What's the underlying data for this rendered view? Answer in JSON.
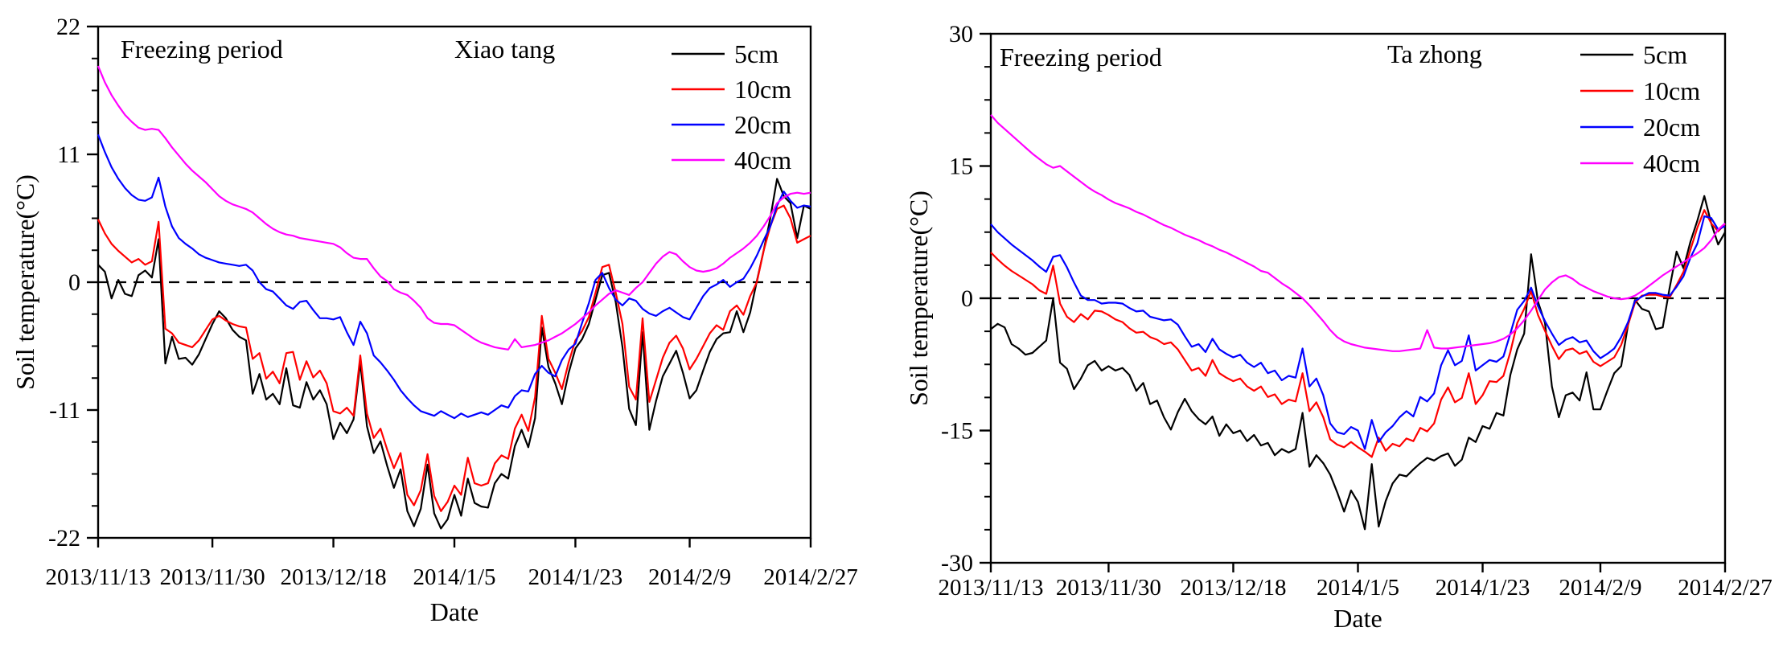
{
  "figure": {
    "background": "#ffffff",
    "text_color": "#000000",
    "annotation": "Freezing period",
    "xlabel": "Date",
    "ylabel": "Soil temperature(°C)"
  },
  "chart_data": [
    {
      "type": "line",
      "title": "Xiao tang",
      "annotation": "Freezing period",
      "xlabel": "Date",
      "ylabel": "Soil temperature(°C)",
      "ylim": [
        -22,
        22
      ],
      "yticks": [
        22,
        11,
        0,
        -11,
        -22
      ],
      "y_minor_per_interval": 3,
      "x_tick_labels": [
        "2013/11/13",
        "2013/11/30",
        "2013/12/18",
        "2014/1/5",
        "2014/1/23",
        "2014/2/9",
        "2014/2/27"
      ],
      "x_tick_days": [
        0,
        17,
        35,
        53,
        71,
        88,
        106
      ],
      "x_days_total": 106,
      "zero_line_dashed": true,
      "legend_position": "top-right",
      "grid": false,
      "series": [
        {
          "name": "5cm",
          "color": "#000000",
          "values": [
            1.5,
            0.9,
            -1.4,
            0.2,
            -1.0,
            -1.2,
            0.6,
            1.0,
            0.4,
            3.7,
            -7.0,
            -4.7,
            -6.6,
            -6.5,
            -7.1,
            -6.2,
            -4.9,
            -3.6,
            -2.5,
            -3.1,
            -4.1,
            -4.7,
            -5.0,
            -9.6,
            -7.9,
            -10.1,
            -9.6,
            -10.5,
            -7.4,
            -10.6,
            -10.8,
            -8.6,
            -10.1,
            -9.3,
            -10.5,
            -13.5,
            -12.1,
            -13.0,
            -11.8,
            -6.9,
            -12.4,
            -14.7,
            -13.7,
            -15.8,
            -17.7,
            -16.1,
            -19.7,
            -21.0,
            -19.5,
            -15.7,
            -19.9,
            -21.2,
            -20.4,
            -18.3,
            -20.1,
            -16.9,
            -19.0,
            -19.3,
            -19.4,
            -17.3,
            -16.5,
            -16.9,
            -14.1,
            -12.7,
            -14.2,
            -11.7,
            -3.9,
            -7.3,
            -8.7,
            -10.5,
            -7.8,
            -5.7,
            -4.9,
            -3.6,
            -1.5,
            0.6,
            0.8,
            -1.7,
            -5.6,
            -10.9,
            -12.3,
            -4.3,
            -12.7,
            -10.2,
            -8.1,
            -7.0,
            -5.9,
            -7.8,
            -10.0,
            -9.3,
            -7.6,
            -6.0,
            -4.9,
            -4.4,
            -4.3,
            -2.5,
            -4.3,
            -2.6,
            0.1,
            2.7,
            5.5,
            8.9,
            7.4,
            6.8,
            3.8,
            6.6,
            6.3
          ]
        },
        {
          "name": "10cm",
          "color": "#ff0000",
          "values": [
            5.4,
            4.2,
            3.3,
            2.7,
            2.2,
            1.7,
            2.0,
            1.5,
            1.8,
            5.2,
            -4.0,
            -4.4,
            -5.2,
            -5.4,
            -5.6,
            -5.0,
            -4.1,
            -3.2,
            -2.9,
            -3.3,
            -3.6,
            -3.8,
            -3.9,
            -6.6,
            -6.1,
            -8.3,
            -7.7,
            -8.7,
            -6.1,
            -6.0,
            -8.4,
            -6.8,
            -8.2,
            -7.6,
            -8.7,
            -11.1,
            -11.3,
            -10.8,
            -11.5,
            -6.3,
            -11.3,
            -13.4,
            -12.6,
            -14.4,
            -16.0,
            -14.7,
            -18.3,
            -19.2,
            -17.9,
            -14.8,
            -18.4,
            -19.7,
            -18.9,
            -17.5,
            -18.3,
            -15.1,
            -17.3,
            -17.5,
            -17.3,
            -15.6,
            -14.9,
            -15.2,
            -12.6,
            -11.4,
            -12.8,
            -9.9,
            -2.9,
            -6.6,
            -7.8,
            -9.2,
            -6.9,
            -5.0,
            -4.2,
            -3.0,
            -0.9,
            1.3,
            1.5,
            -0.9,
            -3.6,
            -9.0,
            -10.1,
            -3.1,
            -10.3,
            -8.4,
            -6.5,
            -5.2,
            -4.6,
            -5.7,
            -7.5,
            -6.6,
            -5.5,
            -4.4,
            -3.7,
            -4.1,
            -2.5,
            -2.0,
            -2.8,
            -1.2,
            0.0,
            2.7,
            4.8,
            6.3,
            6.6,
            5.5,
            3.4,
            3.7,
            4.0
          ]
        },
        {
          "name": "20cm",
          "color": "#0000ff",
          "values": [
            12.7,
            11.2,
            9.9,
            8.9,
            8.1,
            7.5,
            7.1,
            7.0,
            7.3,
            9.0,
            6.5,
            4.8,
            3.8,
            3.3,
            2.9,
            2.4,
            2.1,
            1.9,
            1.7,
            1.6,
            1.5,
            1.4,
            1.5,
            1.0,
            0.0,
            -0.6,
            -0.8,
            -1.4,
            -2.0,
            -2.3,
            -1.7,
            -1.6,
            -2.4,
            -3.1,
            -3.1,
            -3.2,
            -3.0,
            -4.3,
            -5.4,
            -3.4,
            -4.4,
            -6.3,
            -6.9,
            -7.6,
            -8.4,
            -9.3,
            -10.0,
            -10.6,
            -11.1,
            -11.3,
            -11.5,
            -11.1,
            -11.4,
            -11.7,
            -11.3,
            -11.6,
            -11.4,
            -11.2,
            -11.4,
            -11.0,
            -10.6,
            -10.8,
            -9.8,
            -9.3,
            -9.4,
            -7.9,
            -7.2,
            -7.8,
            -8.1,
            -6.7,
            -5.8,
            -5.3,
            -3.5,
            -1.8,
            0.2,
            0.8,
            -0.5,
            -1.5,
            -2.0,
            -1.4,
            -1.6,
            -2.3,
            -2.7,
            -2.9,
            -2.5,
            -2.2,
            -2.6,
            -3.0,
            -3.2,
            -2.2,
            -1.2,
            -0.5,
            -0.2,
            0.2,
            -0.4,
            0.0,
            0.3,
            1.2,
            2.3,
            3.6,
            4.8,
            6.6,
            7.8,
            7.0,
            6.4,
            6.6,
            6.5
          ]
        },
        {
          "name": "40cm",
          "color": "#ff00ff",
          "values": [
            18.6,
            17.2,
            16.1,
            15.2,
            14.4,
            13.8,
            13.3,
            13.1,
            13.2,
            13.1,
            12.4,
            11.6,
            10.9,
            10.2,
            9.6,
            9.1,
            8.6,
            8.0,
            7.4,
            7.0,
            6.7,
            6.5,
            6.3,
            6.0,
            5.5,
            5.0,
            4.6,
            4.3,
            4.1,
            4.0,
            3.8,
            3.7,
            3.6,
            3.5,
            3.4,
            3.3,
            3.0,
            2.5,
            2.1,
            2.0,
            2.0,
            1.2,
            0.5,
            0.1,
            -0.6,
            -0.9,
            -1.1,
            -1.6,
            -2.2,
            -3.1,
            -3.5,
            -3.6,
            -3.6,
            -3.7,
            -4.1,
            -4.5,
            -4.9,
            -5.2,
            -5.4,
            -5.6,
            -5.7,
            -5.8,
            -4.9,
            -5.6,
            -5.5,
            -5.4,
            -5.2,
            -5.0,
            -4.7,
            -4.4,
            -4.0,
            -3.6,
            -3.1,
            -2.6,
            -2.0,
            -1.5,
            -1.0,
            -0.7,
            -0.9,
            -1.1,
            -0.5,
            0.0,
            0.8,
            1.6,
            2.2,
            2.6,
            2.4,
            1.8,
            1.3,
            1.0,
            0.9,
            1.0,
            1.2,
            1.6,
            2.1,
            2.5,
            2.9,
            3.4,
            4.0,
            4.8,
            5.7,
            6.8,
            7.3,
            7.6,
            7.7,
            7.6,
            7.7
          ]
        }
      ]
    },
    {
      "type": "line",
      "title": "Ta zhong",
      "annotation": "Freezing period",
      "xlabel": "Date",
      "ylabel": "Soil temperature(°C)",
      "ylim": [
        -30,
        30
      ],
      "yticks": [
        30,
        15,
        0,
        -15,
        -30
      ],
      "y_minor_per_interval": 3,
      "x_tick_labels": [
        "2013/11/13",
        "2013/11/30",
        "2013/12/18",
        "2014/1/5",
        "2014/1/23",
        "2014/2/9",
        "2014/2/27"
      ],
      "x_tick_days": [
        0,
        17,
        35,
        53,
        71,
        88,
        106
      ],
      "x_days_total": 106,
      "zero_line_dashed": true,
      "legend_position": "top-right",
      "grid": false,
      "series": [
        {
          "name": "5cm",
          "color": "#000000",
          "values": [
            -3.5,
            -2.9,
            -3.3,
            -5.2,
            -5.7,
            -6.4,
            -6.2,
            -5.5,
            -4.8,
            0.0,
            -7.3,
            -8.0,
            -10.3,
            -9.1,
            -7.6,
            -7.1,
            -8.2,
            -7.7,
            -8.2,
            -7.9,
            -8.7,
            -10.5,
            -9.6,
            -12.0,
            -11.6,
            -13.5,
            -14.9,
            -12.9,
            -11.4,
            -12.8,
            -13.7,
            -14.3,
            -13.4,
            -15.6,
            -14.3,
            -15.3,
            -15.0,
            -16.2,
            -15.5,
            -16.7,
            -16.4,
            -17.8,
            -17.1,
            -17.5,
            -17.1,
            -13.0,
            -19.1,
            -17.8,
            -18.7,
            -20.0,
            -22.0,
            -24.2,
            -21.8,
            -23.1,
            -26.2,
            -18.8,
            -25.9,
            -23.0,
            -21.0,
            -20.0,
            -20.2,
            -19.4,
            -18.7,
            -18.1,
            -18.4,
            -17.9,
            -17.6,
            -19.0,
            -18.3,
            -15.8,
            -16.3,
            -14.5,
            -14.8,
            -13.0,
            -13.3,
            -8.7,
            -5.8,
            -4.0,
            5.0,
            -0.4,
            -2.8,
            -10.0,
            -13.5,
            -11.0,
            -10.7,
            -11.6,
            -8.4,
            -12.6,
            -12.6,
            -10.5,
            -8.5,
            -7.7,
            -3.0,
            -0.2,
            -1.2,
            -1.5,
            -3.5,
            -3.3,
            1.2,
            5.3,
            3.4,
            6.4,
            8.8,
            11.6,
            8.5,
            6.1,
            7.5
          ]
        },
        {
          "name": "10cm",
          "color": "#ff0000",
          "values": [
            5.2,
            4.4,
            3.7,
            3.1,
            2.6,
            2.1,
            1.6,
            0.9,
            0.5,
            3.7,
            -0.6,
            -2.1,
            -2.7,
            -1.8,
            -2.4,
            -1.4,
            -1.5,
            -1.9,
            -2.4,
            -2.7,
            -3.4,
            -3.9,
            -3.8,
            -4.4,
            -4.7,
            -5.2,
            -5.0,
            -5.8,
            -7.0,
            -8.2,
            -7.9,
            -8.8,
            -7.0,
            -8.5,
            -9.0,
            -9.4,
            -9.1,
            -10.0,
            -10.5,
            -10.0,
            -11.2,
            -10.9,
            -12.0,
            -11.5,
            -11.7,
            -8.5,
            -12.8,
            -11.8,
            -13.5,
            -16.0,
            -16.6,
            -16.9,
            -16.3,
            -16.9,
            -17.4,
            -18.0,
            -15.8,
            -17.3,
            -16.5,
            -16.8,
            -15.9,
            -16.2,
            -14.7,
            -15.1,
            -14.2,
            -11.5,
            -10.1,
            -11.8,
            -11.3,
            -8.5,
            -12.0,
            -11.0,
            -9.4,
            -9.5,
            -8.8,
            -6.1,
            -2.8,
            -1.2,
            0.8,
            -1.9,
            -3.7,
            -5.4,
            -6.9,
            -5.9,
            -5.7,
            -6.3,
            -6.0,
            -7.2,
            -7.7,
            -7.2,
            -6.7,
            -5.3,
            -3.0,
            -0.5,
            0.3,
            0.4,
            0.4,
            0.2,
            0.1,
            1.5,
            3.0,
            5.5,
            8.0,
            10.0,
            8.5,
            7.6,
            8.4
          ]
        },
        {
          "name": "20cm",
          "color": "#0000ff",
          "values": [
            8.4,
            7.5,
            6.8,
            6.1,
            5.5,
            4.9,
            4.3,
            3.6,
            3.0,
            4.7,
            4.9,
            3.5,
            1.8,
            0.3,
            -0.2,
            -0.2,
            -0.6,
            -0.5,
            -0.5,
            -0.6,
            -1.1,
            -1.5,
            -1.4,
            -2.1,
            -2.3,
            -2.5,
            -2.4,
            -3.0,
            -4.3,
            -5.5,
            -5.2,
            -6.1,
            -4.6,
            -5.8,
            -6.3,
            -6.7,
            -6.4,
            -7.3,
            -7.8,
            -7.3,
            -8.5,
            -8.2,
            -9.3,
            -8.8,
            -9.0,
            -5.7,
            -10.0,
            -9.1,
            -11.0,
            -14.2,
            -15.2,
            -15.4,
            -14.6,
            -15.0,
            -17.1,
            -13.8,
            -16.3,
            -15.2,
            -14.5,
            -13.5,
            -12.8,
            -13.4,
            -11.2,
            -11.7,
            -10.8,
            -7.6,
            -5.9,
            -7.6,
            -7.1,
            -4.2,
            -8.2,
            -7.6,
            -7.0,
            -7.2,
            -6.6,
            -4.0,
            -1.3,
            -0.3,
            1.2,
            -0.9,
            -2.6,
            -4.0,
            -5.3,
            -4.7,
            -4.4,
            -5.0,
            -4.8,
            -6.0,
            -6.8,
            -6.3,
            -5.7,
            -4.4,
            -2.7,
            -0.3,
            0.2,
            0.6,
            0.6,
            0.4,
            0.3,
            1.3,
            2.5,
            4.6,
            6.2,
            9.3,
            9.1,
            7.8,
            8.2
          ]
        },
        {
          "name": "40cm",
          "color": "#ff00ff",
          "values": [
            20.8,
            19.9,
            19.2,
            18.5,
            17.8,
            17.1,
            16.4,
            15.8,
            15.2,
            14.8,
            15.0,
            14.4,
            13.8,
            13.2,
            12.6,
            12.1,
            11.7,
            11.2,
            10.8,
            10.5,
            10.2,
            9.8,
            9.5,
            9.1,
            8.7,
            8.3,
            8.0,
            7.6,
            7.2,
            6.9,
            6.6,
            6.2,
            5.9,
            5.5,
            5.2,
            4.8,
            4.4,
            4.0,
            3.6,
            3.1,
            2.9,
            2.3,
            1.7,
            1.2,
            0.6,
            0.0,
            -0.8,
            -1.7,
            -2.6,
            -3.6,
            -4.4,
            -4.9,
            -5.2,
            -5.4,
            -5.6,
            -5.7,
            -5.8,
            -5.9,
            -6.0,
            -6.0,
            -5.9,
            -5.8,
            -5.7,
            -3.6,
            -5.6,
            -5.7,
            -5.7,
            -5.6,
            -5.5,
            -5.4,
            -5.3,
            -5.2,
            -5.1,
            -4.9,
            -4.6,
            -4.1,
            -3.4,
            -2.5,
            -1.4,
            -0.2,
            1.0,
            1.8,
            2.4,
            2.6,
            2.2,
            1.6,
            1.2,
            0.8,
            0.5,
            0.2,
            0.0,
            -0.1,
            0.0,
            0.3,
            0.8,
            1.4,
            2.0,
            2.6,
            3.1,
            3.6,
            4.1,
            4.6,
            5.1,
            5.7,
            6.6,
            7.8,
            8.5
          ]
        }
      ]
    }
  ]
}
